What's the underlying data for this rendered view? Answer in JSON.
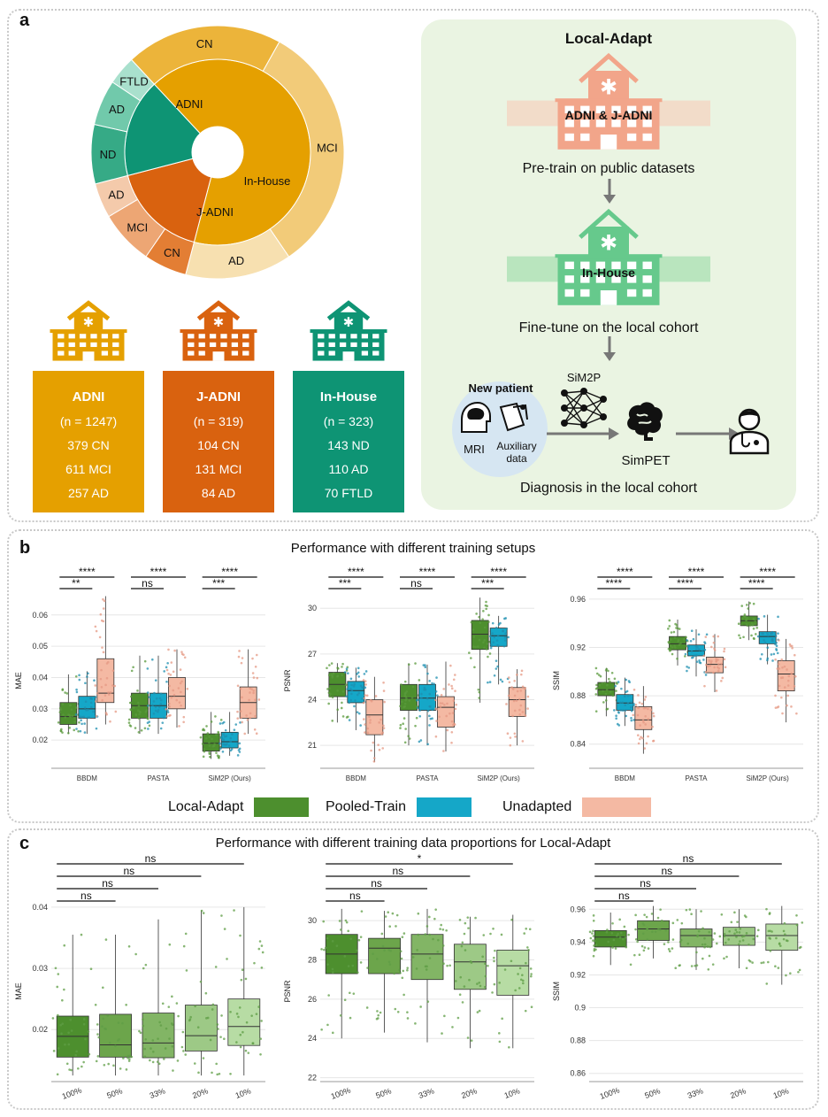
{
  "panel_a": {
    "label": "a",
    "sunburst": {
      "inner": [
        {
          "name": "ADNI",
          "value": 1247,
          "color": "#e5a000"
        },
        {
          "name": "J-ADNI",
          "value": 319,
          "color": "#d9620f"
        },
        {
          "name": "In-House",
          "value": 323,
          "color": "#0e9474"
        }
      ],
      "outer": [
        {
          "name": "CN",
          "value": 379,
          "color": "#ecb43a",
          "parent": "ADNI"
        },
        {
          "name": "MCI",
          "value": 611,
          "color": "#f2cb79",
          "parent": "ADNI"
        },
        {
          "name": "AD",
          "value": 257,
          "color": "#f7e0b0",
          "parent": "ADNI"
        },
        {
          "name": "CN",
          "value": 104,
          "color": "#e37e34",
          "parent": "J-ADNI"
        },
        {
          "name": "MCI",
          "value": 131,
          "color": "#eda674",
          "parent": "J-ADNI"
        },
        {
          "name": "AD",
          "value": 84,
          "color": "#f4caab",
          "parent": "J-ADNI"
        },
        {
          "name": "ND",
          "value": 143,
          "color": "#36aa86",
          "parent": "In-House"
        },
        {
          "name": "AD",
          "value": 110,
          "color": "#71c9ab",
          "parent": "In-House"
        },
        {
          "name": "FTLD",
          "value": 70,
          "color": "#a9e0cd",
          "parent": "In-House"
        }
      ]
    },
    "cohorts": [
      {
        "name": "ADNI",
        "n": "(n = 1247)",
        "l1": "379 CN",
        "l2": "611 MCI",
        "l3": "257 AD",
        "color": "#e5a000"
      },
      {
        "name": "J-ADNI",
        "n": "(n = 319)",
        "l1": "104 CN",
        "l2": "131 MCI",
        "l3": "84 AD",
        "color": "#d9620f"
      },
      {
        "name": "In-House",
        "n": "(n = 323)",
        "l1": "143 ND",
        "l2": "110 AD",
        "l3": "70 FTLD",
        "color": "#0e9474"
      }
    ],
    "local_adapt": {
      "title": "Local-Adapt",
      "public_label": "ADNI & J-ADNI",
      "step1": "Pre-train on public datasets",
      "inhouse_label": "In-House",
      "step2": "Fine-tune on the local cohort",
      "new_patient": "New patient",
      "mri": "MRI",
      "aux1": "Auxiliary",
      "aux2": "data",
      "model": "SiM2P",
      "simpet": "SimPET",
      "step3": "Diagnosis in the local cohort"
    }
  },
  "panel_b": {
    "label": "b",
    "title": "Performance with different training setups",
    "legend": [
      {
        "name": "Local-Adapt",
        "color": "#4d8f2e"
      },
      {
        "name": "Pooled-Train",
        "color": "#15a7c8"
      },
      {
        "name": "Unadapted",
        "color": "#f4b9a3"
      }
    ]
  },
  "panel_c": {
    "label": "c",
    "title": "Performance with different training data proportions for Local-Adapt",
    "colors": [
      "#4d8f2e",
      "#6ca54b",
      "#82b565",
      "#9dc986",
      "#b7dca4"
    ]
  },
  "chart_data": [
    {
      "type": "box",
      "panel": "b",
      "ylabel": "MAE",
      "ylim": [
        0.011,
        0.067
      ],
      "yticks": [
        "0.02",
        "0.03",
        "0.04",
        "0.05",
        "0.06"
      ],
      "yticks_v": [
        0.02,
        0.03,
        0.04,
        0.05,
        0.06
      ],
      "categories": [
        "BBDM",
        "PASTA",
        "SiM2P (Ours)"
      ],
      "series": [
        {
          "name": "Local-Adapt",
          "boxes": [
            [
              0.022,
              0.025,
              0.0275,
              0.032,
              0.041
            ],
            [
              0.022,
              0.027,
              0.031,
              0.035,
              0.047
            ],
            [
              0.014,
              0.0165,
              0.019,
              0.022,
              0.029
            ]
          ]
        },
        {
          "name": "Pooled-Train",
          "boxes": [
            [
              0.022,
              0.027,
              0.03,
              0.034,
              0.042
            ],
            [
              0.022,
              0.027,
              0.031,
              0.035,
              0.047
            ],
            [
              0.015,
              0.0175,
              0.0195,
              0.0225,
              0.029
            ]
          ]
        },
        {
          "name": "Unadapted",
          "boxes": [
            [
              0.025,
              0.032,
              0.035,
              0.046,
              0.066
            ],
            [
              0.024,
              0.03,
              0.034,
              0.04,
              0.049
            ],
            [
              0.022,
              0.027,
              0.032,
              0.037,
              0.049
            ]
          ]
        }
      ],
      "brackets": [
        {
          "cat": 0,
          "pair": "LA-UN",
          "label": "****"
        },
        {
          "cat": 0,
          "pair": "LA-PT",
          "label": "**"
        },
        {
          "cat": 1,
          "pair": "LA-UN",
          "label": "****"
        },
        {
          "cat": 1,
          "pair": "LA-PT",
          "label": "ns"
        },
        {
          "cat": 2,
          "pair": "LA-UN",
          "label": "****"
        },
        {
          "cat": 2,
          "pair": "LA-PT",
          "label": "***"
        }
      ]
    },
    {
      "type": "box",
      "panel": "b",
      "ylabel": "PSNR",
      "ylim": [
        19.5,
        31
      ],
      "yticks": [
        "21",
        "24",
        "27",
        "30"
      ],
      "yticks_v": [
        21,
        24,
        27,
        30
      ],
      "categories": [
        "BBDM",
        "PASTA",
        "SiM2P (Ours)"
      ],
      "series": [
        {
          "name": "Local-Adapt",
          "boxes": [
            [
              22.5,
              24.2,
              25.0,
              25.8,
              26.4
            ],
            [
              21.0,
              23.3,
              24.1,
              25.0,
              26.4
            ],
            [
              23.8,
              27.3,
              28.3,
              29.2,
              30.7
            ]
          ]
        },
        {
          "name": "Pooled-Train",
          "boxes": [
            [
              22.0,
              23.8,
              24.6,
              25.2,
              26.1
            ],
            [
              21.0,
              23.3,
              24.1,
              25.0,
              26.3
            ],
            [
              25.0,
              27.5,
              28.2,
              28.7,
              29.5
            ]
          ]
        },
        {
          "name": "Unadapted",
          "boxes": [
            [
              19.9,
              21.7,
              23.0,
              24.0,
              25.5
            ],
            [
              20.6,
              22.2,
              23.5,
              24.2,
              26.5
            ],
            [
              21.0,
              22.9,
              24.0,
              24.8,
              26.0
            ]
          ]
        }
      ],
      "brackets": [
        {
          "cat": 0,
          "pair": "LA-UN",
          "label": "****"
        },
        {
          "cat": 0,
          "pair": "LA-PT",
          "label": "***"
        },
        {
          "cat": 1,
          "pair": "LA-UN",
          "label": "****"
        },
        {
          "cat": 1,
          "pair": "LA-PT",
          "label": "ns"
        },
        {
          "cat": 2,
          "pair": "LA-UN",
          "label": "****"
        },
        {
          "cat": 2,
          "pair": "LA-PT",
          "label": "***"
        }
      ]
    },
    {
      "type": "box",
      "panel": "b",
      "ylabel": "SSIM",
      "ylim": [
        0.82,
        0.965
      ],
      "yticks": [
        "0.84",
        "0.88",
        "0.92",
        "0.96"
      ],
      "yticks_v": [
        0.84,
        0.88,
        0.92,
        0.96
      ],
      "categories": [
        "BBDM",
        "PASTA",
        "SiM2P (Ours)"
      ],
      "series": [
        {
          "name": "Local-Adapt",
          "boxes": [
            [
              0.863,
              0.88,
              0.885,
              0.891,
              0.903
            ],
            [
              0.905,
              0.918,
              0.923,
              0.929,
              0.943
            ],
            [
              0.926,
              0.938,
              0.942,
              0.946,
              0.958
            ]
          ]
        },
        {
          "name": "Pooled-Train",
          "boxes": [
            [
              0.855,
              0.868,
              0.874,
              0.881,
              0.895
            ],
            [
              0.896,
              0.913,
              0.917,
              0.922,
              0.935
            ],
            [
              0.906,
              0.923,
              0.929,
              0.933,
              0.947
            ]
          ]
        },
        {
          "name": "Unadapted",
          "boxes": [
            [
              0.832,
              0.852,
              0.86,
              0.871,
              0.888
            ],
            [
              0.883,
              0.899,
              0.906,
              0.912,
              0.931
            ],
            [
              0.858,
              0.884,
              0.898,
              0.909,
              0.927
            ]
          ]
        }
      ],
      "brackets": [
        {
          "cat": 0,
          "pair": "LA-UN",
          "label": "****"
        },
        {
          "cat": 0,
          "pair": "LA-PT",
          "label": "****"
        },
        {
          "cat": 1,
          "pair": "LA-UN",
          "label": "****"
        },
        {
          "cat": 1,
          "pair": "LA-PT",
          "label": "****"
        },
        {
          "cat": 2,
          "pair": "LA-UN",
          "label": "****"
        },
        {
          "cat": 2,
          "pair": "LA-PT",
          "label": "****"
        }
      ]
    },
    {
      "type": "box",
      "panel": "c",
      "ylabel": "MAE",
      "ylim": [
        0.0115,
        0.041
      ],
      "yticks": [
        "0.02",
        "0.03",
        "0.04"
      ],
      "yticks_v": [
        0.02,
        0.03,
        0.04
      ],
      "categories": [
        "100%",
        "50%",
        "33%",
        "20%",
        "10%"
      ],
      "boxes": [
        [
          0.0125,
          0.0155,
          0.0189,
          0.0222,
          0.0355
        ],
        [
          0.0125,
          0.0155,
          0.0175,
          0.0225,
          0.0355
        ],
        [
          0.0125,
          0.0154,
          0.0178,
          0.0227,
          0.038
        ],
        [
          0.0125,
          0.0165,
          0.019,
          0.024,
          0.0395
        ],
        [
          0.0125,
          0.0174,
          0.0205,
          0.025,
          0.04
        ]
      ],
      "brackets": [
        {
          "from": 0,
          "to": 1,
          "label": "ns"
        },
        {
          "from": 0,
          "to": 2,
          "label": "ns"
        },
        {
          "from": 0,
          "to": 3,
          "label": "ns"
        },
        {
          "from": 0,
          "to": 4,
          "label": "ns"
        }
      ]
    },
    {
      "type": "box",
      "panel": "c",
      "ylabel": "PSNR",
      "ylim": [
        21.8,
        31
      ],
      "yticks": [
        "22",
        "24",
        "26",
        "28",
        "30"
      ],
      "yticks_v": [
        22,
        24,
        26,
        28,
        30
      ],
      "categories": [
        "100%",
        "50%",
        "33%",
        "20%",
        "10%"
      ],
      "boxes": [
        [
          24.0,
          27.3,
          28.3,
          29.3,
          30.6
        ],
        [
          24.3,
          27.3,
          28.6,
          29.1,
          30.5
        ],
        [
          23.8,
          27.0,
          28.3,
          29.3,
          30.6
        ],
        [
          23.5,
          26.5,
          27.9,
          28.8,
          30.2
        ],
        [
          23.5,
          26.2,
          27.7,
          28.5,
          30.3
        ]
      ],
      "brackets": [
        {
          "from": 0,
          "to": 1,
          "label": "ns"
        },
        {
          "from": 0,
          "to": 2,
          "label": "ns"
        },
        {
          "from": 0,
          "to": 3,
          "label": "ns"
        },
        {
          "from": 0,
          "to": 4,
          "label": "*"
        }
      ]
    },
    {
      "type": "box",
      "panel": "c",
      "ylabel": "SSIM",
      "ylim": [
        0.855,
        0.965
      ],
      "yticks": [
        "0.86",
        "0.88",
        "0.9",
        "0.92",
        "0.94",
        "0.96"
      ],
      "yticks_v": [
        0.86,
        0.88,
        0.9,
        0.92,
        0.94,
        0.96
      ],
      "categories": [
        "100%",
        "50%",
        "33%",
        "20%",
        "10%"
      ],
      "boxes": [
        [
          0.926,
          0.937,
          0.943,
          0.947,
          0.958
        ],
        [
          0.93,
          0.941,
          0.948,
          0.953,
          0.962
        ],
        [
          0.923,
          0.937,
          0.944,
          0.948,
          0.96
        ],
        [
          0.924,
          0.938,
          0.944,
          0.949,
          0.96
        ],
        [
          0.914,
          0.935,
          0.944,
          0.951,
          0.962
        ]
      ],
      "brackets": [
        {
          "from": 0,
          "to": 1,
          "label": "ns"
        },
        {
          "from": 0,
          "to": 2,
          "label": "ns"
        },
        {
          "from": 0,
          "to": 3,
          "label": "ns"
        },
        {
          "from": 0,
          "to": 4,
          "label": "ns"
        }
      ]
    }
  ]
}
